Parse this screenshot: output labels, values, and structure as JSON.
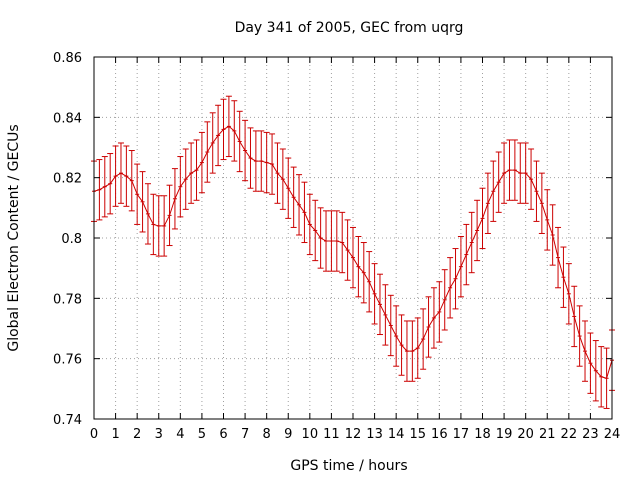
{
  "chart_data": {
    "type": "line",
    "title": "Day 341 of 2005, GEC from uqrg",
    "xlabel": "GPS time / hours",
    "ylabel": "Global Electron Content / GECUs",
    "xlim": [
      0,
      24
    ],
    "ylim": [
      0.74,
      0.86
    ],
    "xticks": [
      0,
      1,
      2,
      3,
      4,
      5,
      6,
      7,
      8,
      9,
      10,
      11,
      12,
      13,
      14,
      15,
      16,
      17,
      18,
      19,
      20,
      21,
      22,
      23,
      24
    ],
    "xtick_labels": [
      "0",
      "1",
      "2",
      "3",
      "4",
      "5",
      "6",
      "7",
      "8",
      "9",
      "10",
      "11",
      "12",
      "13",
      "14",
      "15",
      "16",
      "17",
      "18",
      "19",
      "20",
      "21",
      "22",
      "23",
      "24"
    ],
    "yticks": [
      0.74,
      0.76,
      0.78,
      0.8,
      0.82,
      0.84,
      0.86
    ],
    "ytick_labels": [
      "0.74",
      "0.76",
      "0.78",
      "0.8",
      "0.82",
      "0.84",
      "0.86"
    ],
    "grid": true,
    "series_color": "#cc0000",
    "error_bar": 0.01,
    "series": [
      {
        "x": [
          0,
          0.25,
          0.5,
          0.75,
          1,
          1.25,
          1.5,
          1.75,
          2,
          2.25,
          2.5,
          2.75,
          3,
          3.25,
          3.5,
          3.75,
          4,
          4.25,
          4.5,
          4.75,
          5,
          5.25,
          5.5,
          5.75,
          6,
          6.25,
          6.5,
          6.75,
          7,
          7.25,
          7.5,
          7.75,
          8,
          8.25,
          8.5,
          8.75,
          9,
          9.25,
          9.5,
          9.75,
          10,
          10.25,
          10.5,
          10.75,
          11,
          11.25,
          11.5,
          11.75,
          12,
          12.25,
          12.5,
          12.75,
          13,
          13.25,
          13.5,
          13.75,
          14,
          14.25,
          14.5,
          14.75,
          15,
          15.25,
          15.5,
          15.75,
          16,
          16.25,
          16.5,
          16.75,
          17,
          17.25,
          17.5,
          17.75,
          18,
          18.25,
          18.5,
          18.75,
          19,
          19.25,
          19.5,
          19.75,
          20,
          20.25,
          20.5,
          20.75,
          21,
          21.25,
          21.5,
          21.75,
          22,
          22.25,
          22.5,
          22.75,
          23,
          23.25,
          23.5,
          23.75,
          24
        ],
        "y": [
          0.8155,
          0.816,
          0.817,
          0.818,
          0.8205,
          0.8215,
          0.8205,
          0.819,
          0.8145,
          0.812,
          0.808,
          0.8045,
          0.804,
          0.804,
          0.8075,
          0.813,
          0.817,
          0.8195,
          0.8215,
          0.8225,
          0.825,
          0.8285,
          0.8315,
          0.834,
          0.836,
          0.837,
          0.8355,
          0.832,
          0.829,
          0.8265,
          0.8255,
          0.8255,
          0.825,
          0.8245,
          0.8215,
          0.8195,
          0.8165,
          0.8135,
          0.811,
          0.8085,
          0.8045,
          0.8025,
          0.8,
          0.799,
          0.799,
          0.799,
          0.7985,
          0.796,
          0.7935,
          0.7905,
          0.7885,
          0.7855,
          0.7815,
          0.778,
          0.7745,
          0.771,
          0.7675,
          0.7645,
          0.7625,
          0.7625,
          0.7635,
          0.7665,
          0.7705,
          0.7735,
          0.7755,
          0.7795,
          0.7835,
          0.7865,
          0.7905,
          0.7945,
          0.7985,
          0.8025,
          0.8065,
          0.8115,
          0.8155,
          0.8185,
          0.8215,
          0.8225,
          0.8225,
          0.8215,
          0.8215,
          0.8195,
          0.8155,
          0.8115,
          0.806,
          0.801,
          0.7935,
          0.787,
          0.7815,
          0.774,
          0.7675,
          0.7625,
          0.7585,
          0.756,
          0.754,
          0.7535,
          0.7595
        ]
      }
    ]
  }
}
